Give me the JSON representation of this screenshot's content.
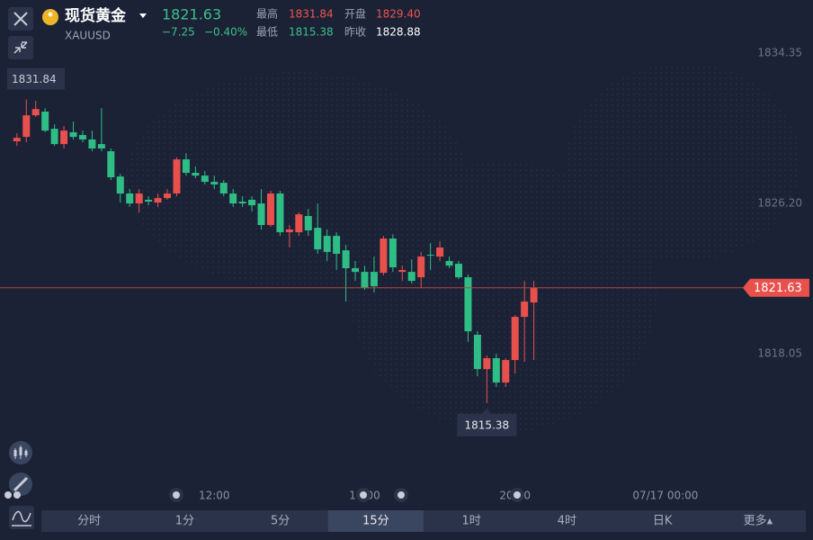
{
  "header": {
    "name": "现货黄金",
    "code": "XAUUSD",
    "price": "1821.63",
    "change": "−7.25",
    "change_pct": "−0.40%",
    "high_label": "最高",
    "high": "1831.84",
    "open_label": "开盘",
    "open": "1829.40",
    "low_label": "最低",
    "low": "1815.38",
    "prev_close_label": "昨收",
    "prev_close": "1828.88"
  },
  "chart_data": {
    "type": "candlestick",
    "up_color": "#e8504c",
    "down_color": "#2ebd85",
    "open": [
      1829.57,
      1829.81,
      1830.98,
      1831.18,
      1830.25,
      1829.42,
      1830.06,
      1829.91,
      1829.67,
      1829.42,
      1829.03,
      1827.66,
      1826.74,
      1826.2,
      1826.4,
      1826.25,
      1826.49,
      1826.74,
      1828.59,
      1827.86,
      1827.71,
      1827.37,
      1827.32,
      1826.74,
      1826.3,
      1826.4,
      1826.2,
      1825.03,
      1826.74,
      1824.64,
      1824.64,
      1825.52,
      1824.88,
      1824.44,
      1824.44,
      1823.66,
      1822.69,
      1822.49,
      1822.49,
      1822.44,
      1824.3,
      1822.49,
      1822.49,
      1822.2,
      1823.42,
      1823.32,
      1823.08,
      1822.93,
      1822.2,
      1819.08,
      1817.22,
      1817.81,
      1816.49,
      1817.71,
      1820.05,
      1820.83
    ],
    "high": [
      1830.01,
      1831.84,
      1831.76,
      1831.37,
      1830.49,
      1830.4,
      1830.64,
      1830.15,
      1830.15,
      1831.37,
      1829.18,
      1827.81,
      1826.98,
      1826.98,
      1826.59,
      1826.74,
      1826.98,
      1828.69,
      1828.93,
      1828.2,
      1827.96,
      1827.71,
      1827.47,
      1826.98,
      1826.59,
      1826.59,
      1826.98,
      1826.88,
      1826.88,
      1825.03,
      1825.71,
      1825.91,
      1826.2,
      1824.79,
      1824.64,
      1823.96,
      1823.08,
      1822.83,
      1823.32,
      1824.44,
      1824.54,
      1822.83,
      1823.17,
      1823.57,
      1824.05,
      1824.15,
      1823.32,
      1823.08,
      1822.35,
      1819.27,
      1817.95,
      1818.05,
      1817.81,
      1820.15,
      1822.0,
      1822.0
    ],
    "low": [
      1829.32,
      1829.52,
      1830.89,
      1830.06,
      1829.32,
      1829.18,
      1829.67,
      1829.52,
      1829.03,
      1829.03,
      1827.47,
      1826.25,
      1826.01,
      1825.71,
      1826.1,
      1826.01,
      1826.4,
      1826.59,
      1827.71,
      1827.57,
      1827.23,
      1826.98,
      1826.59,
      1826.01,
      1826.01,
      1825.76,
      1824.79,
      1824.93,
      1824.44,
      1823.81,
      1824.44,
      1824.44,
      1823.47,
      1823.08,
      1822.59,
      1820.88,
      1822.0,
      1821.52,
      1821.37,
      1822.3,
      1822.49,
      1822.0,
      1821.86,
      1821.61,
      1822.59,
      1823.08,
      1822.69,
      1822.1,
      1818.69,
      1816.83,
      1815.38,
      1816.25,
      1816.25,
      1816.98,
      1817.61,
      1817.71
    ],
    "close": [
      1829.76,
      1830.98,
      1831.32,
      1830.15,
      1829.42,
      1830.15,
      1829.81,
      1829.67,
      1829.18,
      1829.18,
      1827.62,
      1826.74,
      1826.2,
      1826.74,
      1826.3,
      1826.49,
      1826.74,
      1828.59,
      1827.86,
      1827.71,
      1827.37,
      1827.23,
      1826.74,
      1826.2,
      1826.2,
      1826.1,
      1825.03,
      1826.74,
      1824.64,
      1824.79,
      1825.61,
      1824.74,
      1823.71,
      1823.57,
      1823.47,
      1822.69,
      1822.49,
      1821.61,
      1821.71,
      1824.3,
      1822.74,
      1822.59,
      1822.0,
      1823.32,
      1823.42,
      1823.81,
      1822.83,
      1822.2,
      1819.27,
      1817.22,
      1817.81,
      1816.49,
      1817.71,
      1820.05,
      1820.88,
      1821.63
    ],
    "max_marker": 1831.84,
    "min_marker": 1815.38,
    "last_price": 1821.63,
    "ylim": [
      1810.88,
      1835.28
    ],
    "yticks": [
      1834.35,
      {
        "value": 1826.2,
        "label": "1826.20"
      },
      1818.05
    ],
    "xlim": [
      -1.8,
      84.7
    ],
    "xticks": [
      {
        "value": 21,
        "label": "12:00"
      },
      {
        "value": 37,
        "label": "16:00"
      },
      {
        "value": 53,
        "label": "20:00"
      },
      {
        "value": 69,
        "label": "07/17 00:00"
      }
    ]
  },
  "tabs": [
    "分时",
    "1分",
    "5分",
    "15分",
    "1时",
    "4时",
    "日K",
    "更多▴"
  ],
  "selected_tab": "15分"
}
